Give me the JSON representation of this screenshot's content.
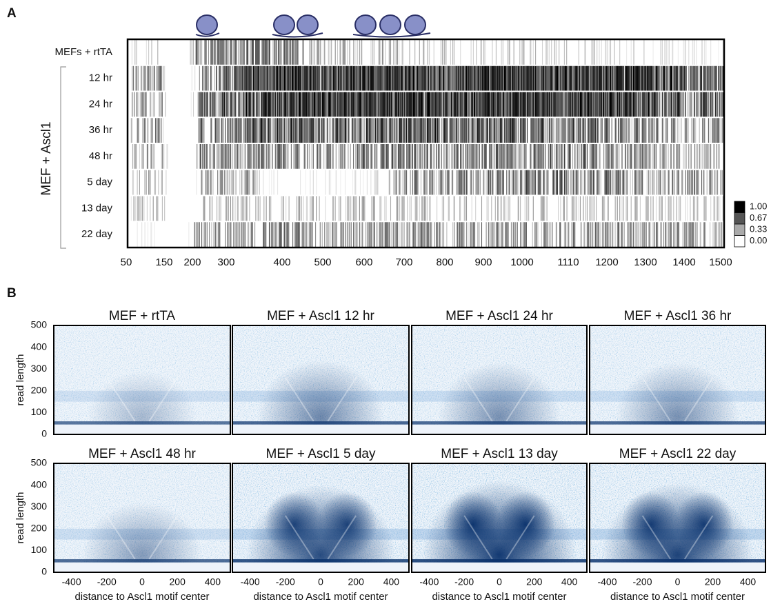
{
  "panel_a": {
    "label": "A",
    "row_labels": [
      "MEFs + rtTA",
      "12 hr",
      "24 hr",
      "36 hr",
      "48 hr",
      "5 day",
      "13 day",
      "22 day"
    ],
    "group_label": "MEF + Ascl1",
    "x_tick_labels": [
      "50",
      "150",
      "200",
      "300",
      "400",
      "500",
      "600",
      "700",
      "800",
      "900",
      "1000",
      "1110",
      "1200",
      "1300",
      "1400",
      "1500"
    ],
    "colorbar_labels": [
      "1.00",
      "0.67",
      "0.33",
      "0.00"
    ]
  },
  "panel_b": {
    "label": "B",
    "titles": [
      "MEF + rtTA",
      "MEF + Ascl1 12 hr",
      "MEF + Ascl1 24 hr",
      "MEF + Ascl1 36 hr",
      "MEF + Ascl1 48 hr",
      "MEF + Ascl1 5 day",
      "MEF + Ascl1 13 day",
      "MEF + Ascl1 22 day"
    ],
    "y_label": "read length",
    "x_label": "distance to Ascl1 motif center",
    "y_tick_labels": [
      "0",
      "100",
      "200",
      "300",
      "400",
      "500"
    ],
    "x_tick_labels": [
      "-400",
      "-200",
      "0",
      "200",
      "400"
    ]
  }
}
